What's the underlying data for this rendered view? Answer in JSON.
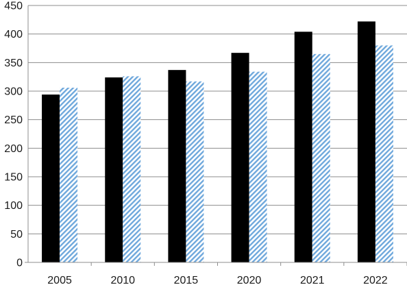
{
  "chart_data": {
    "type": "bar",
    "title": "",
    "xlabel": "",
    "ylabel": "",
    "categories": [
      "2005",
      "2010",
      "2015",
      "2020",
      "2021",
      "2022"
    ],
    "series": [
      {
        "values": [
          294,
          324,
          337,
          367,
          404,
          422
        ],
        "color": "#000000",
        "fill": "solid"
      },
      {
        "values": [
          306,
          326,
          317,
          334,
          365,
          380
        ],
        "color": "#6fa8dc",
        "fill": "diagonal-hatch"
      }
    ],
    "ylim": [
      0,
      450
    ],
    "yticks": [
      0,
      50,
      100,
      150,
      200,
      250,
      300,
      350,
      400,
      450
    ],
    "grid": true,
    "legend": "none"
  }
}
